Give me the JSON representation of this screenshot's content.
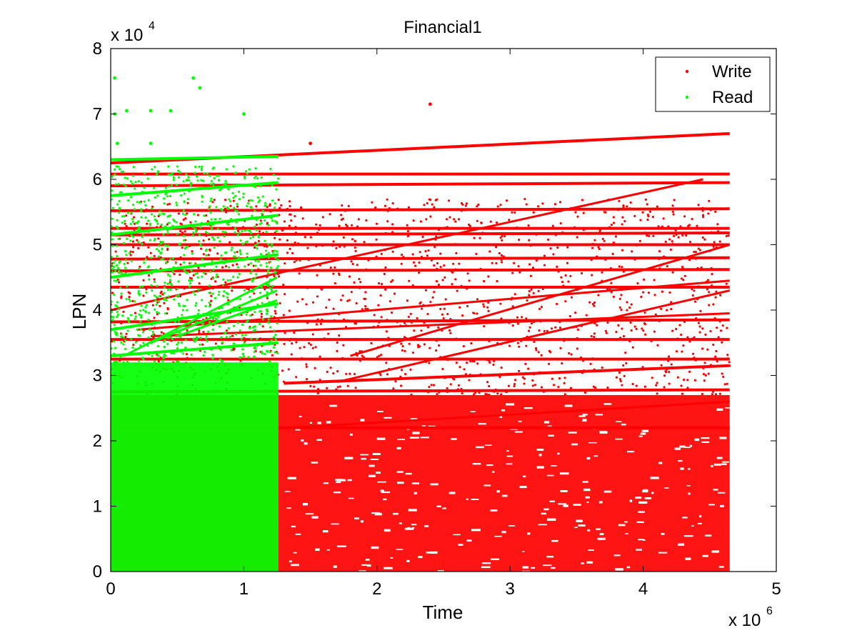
{
  "chart_data": {
    "type": "scatter",
    "title": "Financial1",
    "xlabel": "Time",
    "ylabel": "LPN",
    "x_multiplier_label": "x 10",
    "x_multiplier_exp": "6",
    "y_multiplier_label": "x 10",
    "y_multiplier_exp": "4",
    "xlim": [
      0,
      5
    ],
    "ylim": [
      0,
      8
    ],
    "xticks": [
      0,
      1,
      2,
      3,
      4,
      5
    ],
    "xtick_labels": [
      "0",
      "1",
      "2",
      "3",
      "4",
      "5"
    ],
    "yticks": [
      0,
      1,
      2,
      3,
      4,
      5,
      6,
      7,
      8
    ],
    "ytick_labels": [
      "0",
      "1",
      "2",
      "3",
      "4",
      "5",
      "6",
      "7",
      "8"
    ],
    "grid": false,
    "legend_position": "top-right",
    "colors": {
      "write": "#ff0000",
      "read": "#00ff00"
    },
    "series": [
      {
        "name": "Write",
        "color": "#ff0000",
        "x_range": [
          0.0,
          4.65
        ],
        "dense_region": {
          "x": [
            0,
            4.65
          ],
          "y": [
            0,
            2.7
          ]
        },
        "horizontal_bands": [
          {
            "y_start": 6.25,
            "y_end": 6.7,
            "x": [
              0,
              4.65
            ]
          },
          {
            "y_start": 6.08,
            "y_end": 6.08,
            "x": [
              0,
              4.65
            ]
          },
          {
            "y_start": 5.9,
            "y_end": 5.95,
            "x": [
              0,
              4.65
            ]
          },
          {
            "y_start": 5.52,
            "y_end": 5.55,
            "x": [
              0,
              4.65
            ]
          },
          {
            "y_start": 5.25,
            "y_end": 5.25,
            "x": [
              0,
              4.65
            ]
          },
          {
            "y_start": 5.15,
            "y_end": 5.18,
            "x": [
              0,
              4.65
            ]
          },
          {
            "y_start": 5.0,
            "y_end": 5.0,
            "x": [
              0,
              4.65
            ]
          },
          {
            "y_start": 4.78,
            "y_end": 4.8,
            "x": [
              0,
              4.65
            ]
          },
          {
            "y_start": 4.6,
            "y_end": 4.62,
            "x": [
              0,
              4.65
            ]
          },
          {
            "y_start": 4.35,
            "y_end": 4.35,
            "x": [
              0,
              4.65
            ]
          },
          {
            "y_start": 3.82,
            "y_end": 3.85,
            "x": [
              0,
              4.65
            ]
          },
          {
            "y_start": 3.55,
            "y_end": 3.55,
            "x": [
              0,
              4.65
            ]
          },
          {
            "y_start": 3.25,
            "y_end": 3.25,
            "x": [
              0,
              4.65
            ]
          },
          {
            "y_start": 2.88,
            "y_end": 3.15,
            "x": [
              1.3,
              4.65
            ]
          },
          {
            "y_start": 2.75,
            "y_end": 2.78,
            "x": [
              0,
              4.65
            ]
          },
          {
            "y_start": 2.2,
            "y_end": 2.2,
            "x": [
              0,
              4.65
            ]
          }
        ],
        "sloped_traces": [
          {
            "x": [
              0.0,
              4.45
            ],
            "y": [
              4.0,
              6.0
            ]
          },
          {
            "x": [
              0.2,
              4.65
            ],
            "y": [
              3.7,
              4.45
            ]
          },
          {
            "x": [
              0.3,
              4.65
            ],
            "y": [
              3.6,
              3.95
            ]
          },
          {
            "x": [
              1.7,
              4.65
            ],
            "y": [
              2.9,
              4.3
            ]
          },
          {
            "x": [
              1.8,
              4.65
            ],
            "y": [
              3.3,
              5.0
            ]
          },
          {
            "x": [
              1.35,
              4.65
            ],
            "y": [
              2.2,
              2.6
            ]
          }
        ],
        "outliers": [
          {
            "x": 2.4,
            "y": 7.15
          },
          {
            "x": 1.5,
            "y": 6.55
          }
        ]
      },
      {
        "name": "Read",
        "color": "#00ff00",
        "x_range": [
          0.0,
          1.26
        ],
        "dense_region": {
          "x": [
            0,
            1.26
          ],
          "y": [
            0,
            3.2
          ]
        },
        "horizontal_bands": [
          {
            "y_start": 6.3,
            "y_end": 6.35,
            "x": [
              0,
              1.26
            ]
          },
          {
            "y_start": 5.75,
            "y_end": 5.95,
            "x": [
              0,
              1.26
            ]
          },
          {
            "y_start": 5.15,
            "y_end": 5.45,
            "x": [
              0,
              1.26
            ]
          },
          {
            "y_start": 4.5,
            "y_end": 4.85,
            "x": [
              0,
              1.26
            ]
          },
          {
            "y_start": 3.7,
            "y_end": 4.1,
            "x": [
              0,
              1.26
            ]
          },
          {
            "y_start": 3.3,
            "y_end": 3.5,
            "x": [
              0,
              1.26
            ]
          }
        ],
        "sloped_traces": [
          {
            "x": [
              0.1,
              1.25
            ],
            "y": [
              3.3,
              4.5
            ]
          },
          {
            "x": [
              0.3,
              1.25
            ],
            "y": [
              3.5,
              4.3
            ]
          },
          {
            "x": [
              0.5,
              1.25
            ],
            "y": [
              3.6,
              4.15
            ]
          }
        ],
        "outliers": [
          {
            "x": 0.03,
            "y": 7.55
          },
          {
            "x": 0.03,
            "y": 7.0
          },
          {
            "x": 0.62,
            "y": 7.55
          },
          {
            "x": 0.67,
            "y": 7.4
          },
          {
            "x": 1.0,
            "y": 7.0
          },
          {
            "x": 0.3,
            "y": 7.05
          },
          {
            "x": 0.45,
            "y": 7.05
          },
          {
            "x": 0.12,
            "y": 7.05
          },
          {
            "x": 0.05,
            "y": 6.55
          },
          {
            "x": 0.3,
            "y": 6.55
          }
        ]
      }
    ]
  }
}
